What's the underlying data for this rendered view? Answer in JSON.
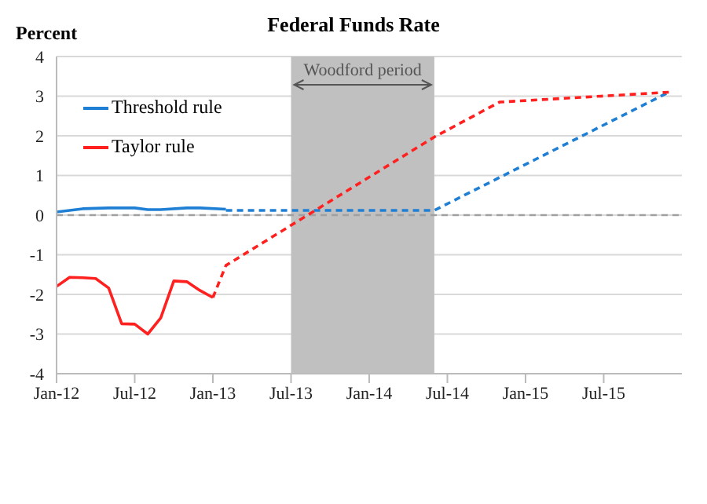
{
  "chart_data": {
    "type": "line",
    "title": "Federal Funds Rate",
    "ylabel": "Percent",
    "xlim": [
      "2012-01",
      "2016-01"
    ],
    "xticks": [
      {
        "value": "2012-01",
        "label": "Jan-12"
      },
      {
        "value": "2012-07",
        "label": "Jul-12"
      },
      {
        "value": "2013-01",
        "label": "Jan-13"
      },
      {
        "value": "2013-07",
        "label": "Jul-13"
      },
      {
        "value": "2014-01",
        "label": "Jan-14"
      },
      {
        "value": "2014-07",
        "label": "Jul-14"
      },
      {
        "value": "2015-01",
        "label": "Jan-15"
      },
      {
        "value": "2015-07",
        "label": "Jul-15"
      }
    ],
    "ylim": [
      -4,
      4
    ],
    "yticks": [
      -4,
      -3,
      -2,
      -1,
      0,
      1,
      2,
      3,
      4
    ],
    "grid": "y",
    "legend": "top left",
    "marker": "none",
    "series": [
      {
        "name": "Threshold rule",
        "color": "#1f7fd4",
        "line_style": "solid",
        "x": [
          "2012-01",
          "2012-02",
          "2012-03",
          "2012-05",
          "2012-07",
          "2012-08",
          "2012-09",
          "2012-11",
          "2012-12",
          "2013-02"
        ],
        "values": [
          0.08,
          0.12,
          0.16,
          0.18,
          0.18,
          0.14,
          0.14,
          0.18,
          0.18,
          0.15
        ]
      },
      {
        "color": "#1f7fd4",
        "line_style": "dashed",
        "x": [
          "2013-02",
          "2014-06",
          "2015-12"
        ],
        "values": [
          0.12,
          0.12,
          3.1
        ]
      },
      {
        "name": "Taylor rule",
        "color": "#ff2020",
        "line_style": "solid",
        "x": [
          "2012-01",
          "2012-02",
          "2012-03",
          "2012-04",
          "2012-05",
          "2012-06",
          "2012-07",
          "2012-08",
          "2012-09",
          "2012-10",
          "2012-11",
          "2012-12",
          "2013-01"
        ],
        "values": [
          -1.8,
          -1.57,
          -1.58,
          -1.6,
          -1.84,
          -2.74,
          -2.75,
          -3.0,
          -2.59,
          -1.66,
          -1.68,
          -1.9,
          -2.08
        ]
      },
      {
        "color": "#ff2020",
        "line_style": "dashed",
        "x": [
          "2013-01",
          "2013-02",
          "2014-06",
          "2014-11",
          "2015-12"
        ],
        "values": [
          -2.08,
          -1.27,
          1.97,
          2.85,
          3.1
        ]
      }
    ],
    "ref_lines": [
      {
        "axis": "y",
        "value": 0,
        "color": "#a0a0a0",
        "line_style": "dashed"
      }
    ],
    "bands": [
      {
        "axis": "x",
        "from": "2013-07",
        "to": "2014-06",
        "label": "Woodford period",
        "color": "#c0c0c0"
      }
    ]
  }
}
